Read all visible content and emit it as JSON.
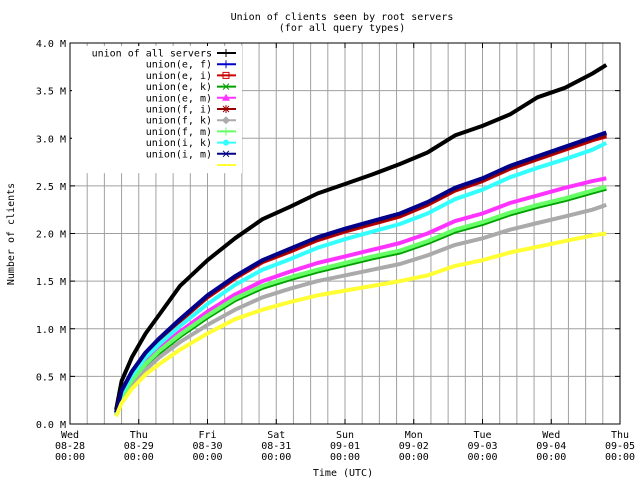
{
  "chart_data": {
    "type": "line",
    "title": "Union of clients seen by root servers",
    "subtitle": "(for all query types)",
    "xlabel": "Time (UTC)",
    "ylabel": "Number of clients",
    "ylim": [
      0,
      4.0
    ],
    "y_ticks": [
      "0.0 M",
      "0.5 M",
      "1.0 M",
      "1.5 M",
      "2.0 M",
      "2.5 M",
      "3.0 M",
      "3.5 M",
      "4.0 M"
    ],
    "y_tick_values": [
      0,
      0.5,
      1.0,
      1.5,
      2.0,
      2.5,
      3.0,
      3.5,
      4.0
    ],
    "xlim": [
      0,
      8
    ],
    "x_ticks": [
      {
        "day": "Wed",
        "date": "08-28",
        "time": "00:00",
        "x": 0
      },
      {
        "day": "Thu",
        "date": "08-29",
        "time": "00:00",
        "x": 1
      },
      {
        "day": "Fri",
        "date": "08-30",
        "time": "00:00",
        "x": 2
      },
      {
        "day": "Sat",
        "date": "08-31",
        "time": "00:00",
        "x": 3
      },
      {
        "day": "Sun",
        "date": "09-01",
        "time": "00:00",
        "x": 4
      },
      {
        "day": "Mon",
        "date": "09-02",
        "time": "00:00",
        "x": 5
      },
      {
        "day": "Tue",
        "date": "09-03",
        "time": "00:00",
        "x": 6
      },
      {
        "day": "Wed",
        "date": "09-04",
        "time": "00:00",
        "x": 7
      },
      {
        "day": "Thu",
        "date": "09-05",
        "time": "00:00",
        "x": 8
      }
    ],
    "grid": true,
    "legend_position": "top-left",
    "x": [
      0.67,
      0.75,
      0.9,
      1.1,
      1.3,
      1.6,
      2.0,
      2.4,
      2.8,
      3.2,
      3.6,
      4.0,
      4.4,
      4.8,
      5.2,
      5.6,
      6.0,
      6.4,
      6.8,
      7.2,
      7.6,
      7.8
    ],
    "series": [
      {
        "name": "union of all servers",
        "color": "#000000",
        "marker": "+",
        "values": [
          0.15,
          0.45,
          0.7,
          0.95,
          1.15,
          1.45,
          1.72,
          1.95,
          2.15,
          2.28,
          2.42,
          2.52,
          2.62,
          2.73,
          2.85,
          3.03,
          3.13,
          3.25,
          3.43,
          3.53,
          3.68,
          3.77
        ]
      },
      {
        "name": "union(e, f)",
        "color": "#0000cc",
        "marker": "+",
        "values": [
          0.12,
          0.35,
          0.55,
          0.75,
          0.9,
          1.1,
          1.35,
          1.55,
          1.72,
          1.83,
          1.95,
          2.04,
          2.12,
          2.2,
          2.32,
          2.47,
          2.57,
          2.7,
          2.8,
          2.9,
          3.0,
          3.05
        ]
      },
      {
        "name": "union(e, i)",
        "color": "#cc0000",
        "marker": "square",
        "values": [
          0.12,
          0.34,
          0.54,
          0.74,
          0.88,
          1.08,
          1.33,
          1.53,
          1.7,
          1.81,
          1.93,
          2.02,
          2.1,
          2.18,
          2.3,
          2.45,
          2.55,
          2.68,
          2.78,
          2.88,
          2.98,
          3.02
        ]
      },
      {
        "name": "union(e, k)",
        "color": "#00a000",
        "marker": "x",
        "values": [
          0.1,
          0.28,
          0.45,
          0.62,
          0.75,
          0.92,
          1.12,
          1.3,
          1.43,
          1.52,
          1.6,
          1.67,
          1.74,
          1.8,
          1.9,
          2.02,
          2.1,
          2.2,
          2.28,
          2.35,
          2.43,
          2.47
        ]
      },
      {
        "name": "union(e, m)",
        "color": "#ff33ff",
        "marker": "triangle",
        "values": [
          0.11,
          0.3,
          0.48,
          0.65,
          0.8,
          0.97,
          1.18,
          1.36,
          1.5,
          1.6,
          1.69,
          1.76,
          1.83,
          1.9,
          2.0,
          2.13,
          2.21,
          2.32,
          2.4,
          2.48,
          2.55,
          2.58
        ]
      },
      {
        "name": "union(f, i)",
        "color": "#990000",
        "marker": "asterisk",
        "values": [
          0.12,
          0.34,
          0.54,
          0.74,
          0.89,
          1.09,
          1.34,
          1.54,
          1.71,
          1.82,
          1.94,
          2.03,
          2.11,
          2.19,
          2.31,
          2.46,
          2.56,
          2.69,
          2.79,
          2.89,
          2.99,
          3.03
        ]
      },
      {
        "name": "union(f, k)",
        "color": "#aaaaaa",
        "marker": "diamond",
        "values": [
          0.09,
          0.25,
          0.41,
          0.57,
          0.7,
          0.86,
          1.04,
          1.2,
          1.33,
          1.42,
          1.5,
          1.56,
          1.62,
          1.68,
          1.77,
          1.88,
          1.95,
          2.04,
          2.11,
          2.18,
          2.25,
          2.3
        ]
      },
      {
        "name": "union(f, m)",
        "color": "#66ff66",
        "marker": "+",
        "values": [
          0.1,
          0.28,
          0.46,
          0.63,
          0.77,
          0.94,
          1.14,
          1.32,
          1.45,
          1.54,
          1.62,
          1.69,
          1.76,
          1.82,
          1.92,
          2.04,
          2.12,
          2.22,
          2.3,
          2.37,
          2.45,
          2.49
        ]
      },
      {
        "name": "union(i, k)",
        "color": "#33ffff",
        "marker": "circle",
        "values": [
          0.11,
          0.32,
          0.51,
          0.7,
          0.84,
          1.03,
          1.26,
          1.46,
          1.62,
          1.73,
          1.85,
          1.94,
          2.02,
          2.1,
          2.21,
          2.36,
          2.46,
          2.59,
          2.69,
          2.78,
          2.88,
          2.95
        ]
      },
      {
        "name": "union(i, m)",
        "color": "#000088",
        "marker": "x",
        "values": [
          0.12,
          0.35,
          0.55,
          0.75,
          0.9,
          1.1,
          1.35,
          1.55,
          1.72,
          1.84,
          1.96,
          2.05,
          2.13,
          2.21,
          2.33,
          2.48,
          2.58,
          2.71,
          2.81,
          2.91,
          3.01,
          3.06
        ]
      },
      {
        "name": "",
        "color": "#ffff33",
        "marker": "",
        "values": [
          0.08,
          0.22,
          0.37,
          0.52,
          0.63,
          0.78,
          0.95,
          1.1,
          1.2,
          1.28,
          1.35,
          1.4,
          1.45,
          1.5,
          1.56,
          1.66,
          1.72,
          1.8,
          1.86,
          1.92,
          1.98,
          2.0
        ]
      }
    ]
  }
}
